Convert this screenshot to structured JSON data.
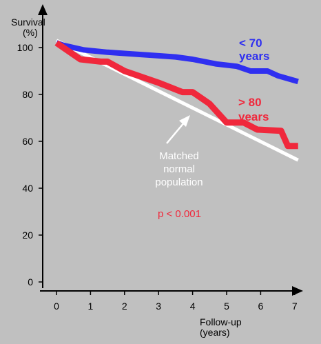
{
  "chart_data": {
    "type": "line",
    "ylabel": [
      "Survival",
      "(%)"
    ],
    "xlabel": [
      "Follow-up",
      "(years)"
    ],
    "xlim": [
      0,
      7
    ],
    "ylim": [
      0,
      100
    ],
    "x_ticks": [
      0,
      1,
      2,
      3,
      4,
      5,
      6,
      7
    ],
    "y_ticks": [
      0,
      20,
      40,
      60,
      80,
      100
    ],
    "grid": false,
    "series": [
      {
        "name": [
          "< 70",
          "years"
        ],
        "color": "#2f2ff0",
        "x": [
          0,
          0.2,
          0.8,
          1.5,
          2.0,
          3.0,
          3.5,
          4.0,
          4.7,
          5.3,
          5.7,
          6.0,
          6.2,
          6.5,
          7.1
        ],
        "y": [
          102,
          101,
          99,
          98,
          97.5,
          96.5,
          96,
          95,
          93,
          92,
          90,
          90,
          90,
          88,
          85.5
        ]
      },
      {
        "name": [
          "> 80",
          "years"
        ],
        "color": "#f0283c",
        "x": [
          0,
          0.2,
          0.7,
          1.3,
          1.5,
          2.0,
          3.0,
          3.7,
          4.0,
          4.5,
          5.0,
          5.5,
          5.9,
          6.6,
          6.8,
          7.1
        ],
        "y": [
          102,
          100,
          95,
          94,
          94,
          90,
          85,
          81,
          81,
          76,
          68,
          68,
          65,
          64.5,
          58,
          58
        ]
      },
      {
        "name": [
          "Matched",
          "normal",
          "population"
        ],
        "color": "#ffffff",
        "x": [
          0,
          7.1
        ],
        "y": [
          103,
          52
        ]
      }
    ],
    "annotations": [
      "p < 0.001"
    ]
  }
}
